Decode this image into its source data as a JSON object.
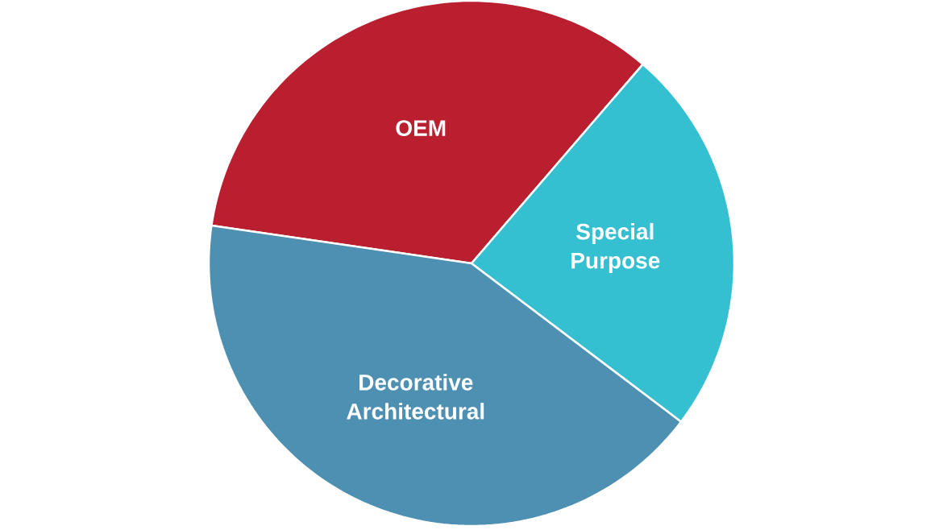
{
  "chart_data": {
    "type": "pie",
    "categories": [
      "OEM",
      "Special Purpose",
      "Decorative Architectural"
    ],
    "values": [
      34,
      24,
      42
    ],
    "colors": [
      "#b91f2f",
      "#35c0d2",
      "#4e90b2"
    ]
  }
}
